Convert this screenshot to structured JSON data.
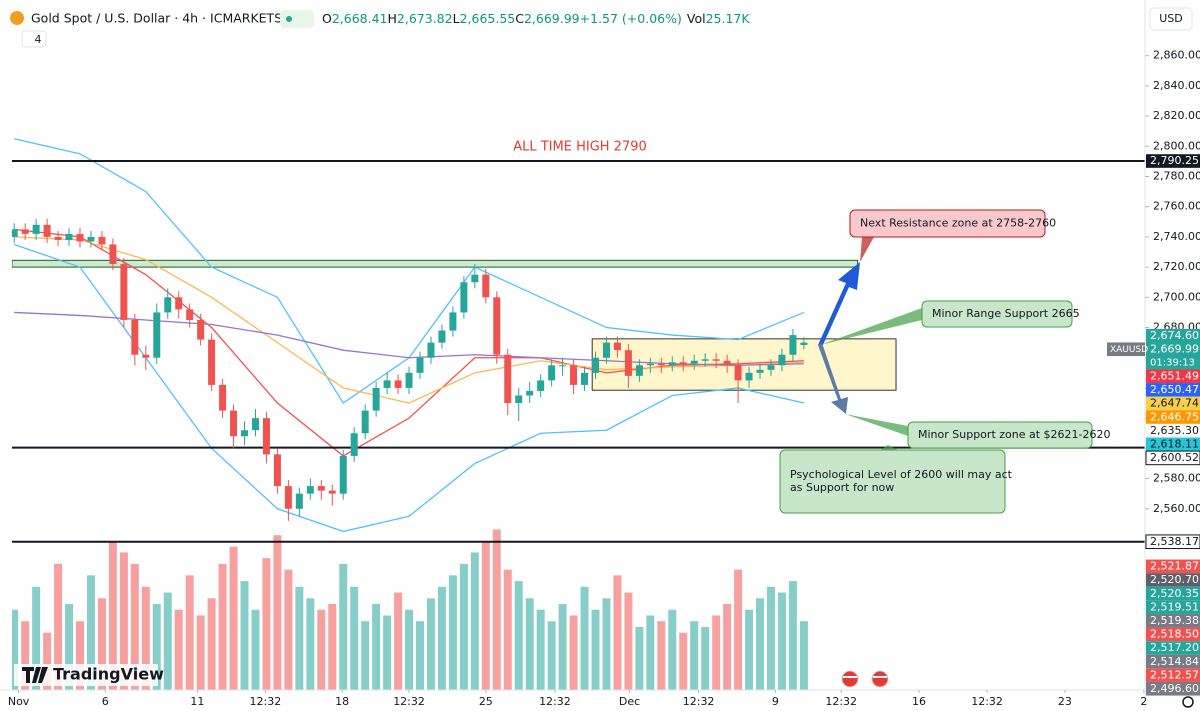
{
  "header": {
    "symbol": "Gold Spot / U.S. Dollar · 4h · ICMARKETS",
    "ohlc": [
      {
        "label": "O",
        "value": "2,668.41"
      },
      {
        "label": "H",
        "value": "2,673.82"
      },
      {
        "label": "L",
        "value": "2,665.55"
      },
      {
        "label": "C",
        "value": "2,669.99"
      }
    ],
    "change": "+1.57 (+0.06%)",
    "volume": {
      "label": "Vol",
      "value": "25.17K"
    },
    "indicator_count": "4",
    "currency": "USD",
    "logo": "TradingView"
  },
  "chart_data": {
    "type": "candlestick",
    "xlim": [
      -0.2,
      103.1
    ],
    "ylim": [
      2440,
      2877
    ],
    "vlim": [
      0,
      30
    ],
    "grid": false,
    "up_color": "#26a69a",
    "down_color": "#ef5350",
    "xticks": [
      {
        "value": 0.4,
        "label": "Nov"
      },
      {
        "value": 8.3,
        "label": "6"
      },
      {
        "value": 16.7,
        "label": "11"
      },
      {
        "value": 22.9,
        "label": "12:32"
      },
      {
        "value": 29.9,
        "label": "18"
      },
      {
        "value": 36,
        "label": "12:32"
      },
      {
        "value": 43,
        "label": "25"
      },
      {
        "value": 49.3,
        "label": "12:32"
      },
      {
        "value": 56.1,
        "label": "Dec"
      },
      {
        "value": 62.4,
        "label": "12:32"
      },
      {
        "value": 69.4,
        "label": "9"
      },
      {
        "value": 75.4,
        "label": "12:32"
      },
      {
        "value": 82.5,
        "label": "16"
      },
      {
        "value": 88.7,
        "label": "12:32"
      },
      {
        "value": 95.8,
        "label": "23"
      },
      {
        "value": 103,
        "label": "2"
      }
    ],
    "yticks": [
      {
        "value": 2560,
        "label": "2,560.00"
      },
      {
        "value": 2580,
        "label": "2,580.00"
      },
      {
        "value": 2600,
        "label": "2,600.00"
      },
      {
        "value": 2620,
        "label": "2,620.00"
      },
      {
        "value": 2640,
        "label": "2,640.00"
      },
      {
        "value": 2660,
        "label": "2,660.00"
      },
      {
        "value": 2680,
        "label": "2,680.00"
      },
      {
        "value": 2700,
        "label": "2,700.00"
      },
      {
        "value": 2720,
        "label": "2,720.00"
      },
      {
        "value": 2740,
        "label": "2,740.00"
      },
      {
        "value": 2760,
        "label": "2,760.00"
      },
      {
        "value": 2780,
        "label": "2,780.00"
      },
      {
        "value": 2800,
        "label": "2,800.00"
      },
      {
        "value": 2820,
        "label": "2,820.00"
      },
      {
        "value": 2840,
        "label": "2,840.00"
      },
      {
        "value": 2860,
        "label": "2,860.00"
      }
    ],
    "open": [
      2740,
      2745,
      2742,
      2748,
      2740,
      2738,
      2742,
      2737,
      2740,
      2735,
      2722,
      2685,
      2662,
      2660,
      2690,
      2700,
      2692,
      2685,
      2672,
      2642,
      2625,
      2608,
      2612,
      2620,
      2596,
      2575,
      2560,
      2570,
      2575,
      2572,
      2570,
      2595,
      2610,
      2625,
      2640,
      2645,
      2640,
      2650,
      2660,
      2670,
      2678,
      2690,
      2710,
      2715,
      2700,
      2662,
      2630,
      2635,
      2638,
      2645,
      2655,
      2655,
      2642,
      2650,
      2660,
      2670,
      2665,
      2648,
      2655,
      2656,
      2655,
      2657,
      2656,
      2658,
      2659,
      2658,
      2655,
      2645,
      2650,
      2652,
      2655,
      2662,
      2668.41
    ],
    "high": [
      2749,
      2749,
      2752,
      2752,
      2744,
      2746,
      2746,
      2744,
      2744,
      2739,
      2726,
      2689,
      2668,
      2696,
      2706,
      2704,
      2696,
      2689,
      2676,
      2646,
      2629,
      2618,
      2626,
      2624,
      2600,
      2579,
      2574,
      2580,
      2579,
      2576,
      2599,
      2614,
      2629,
      2644,
      2650,
      2649,
      2654,
      2664,
      2674,
      2682,
      2694,
      2714,
      2722,
      2719,
      2704,
      2666,
      2640,
      2644,
      2649,
      2659,
      2660,
      2659,
      2654,
      2664,
      2674,
      2674,
      2669,
      2659,
      2660,
      2660,
      2661,
      2661,
      2662,
      2663,
      2663,
      2662,
      2659,
      2654,
      2656,
      2659,
      2666,
      2679,
      2673.82
    ],
    "low": [
      2736,
      2738,
      2738,
      2736,
      2734,
      2734,
      2733,
      2733,
      2731,
      2718,
      2680,
      2655,
      2652,
      2656,
      2686,
      2686,
      2680,
      2668,
      2638,
      2620,
      2600,
      2602,
      2608,
      2590,
      2570,
      2552,
      2555,
      2566,
      2566,
      2562,
      2566,
      2591,
      2606,
      2621,
      2636,
      2636,
      2636,
      2646,
      2656,
      2666,
      2674,
      2686,
      2706,
      2696,
      2656,
      2622,
      2618,
      2630,
      2634,
      2641,
      2648,
      2636,
      2638,
      2646,
      2656,
      2660,
      2640,
      2644,
      2650,
      2650,
      2651,
      2651,
      2652,
      2654,
      2653,
      2650,
      2630,
      2640,
      2646,
      2648,
      2651,
      2658,
      2665.55
    ],
    "close": [
      2745,
      2742,
      2748,
      2740,
      2738,
      2742,
      2737,
      2740,
      2735,
      2722,
      2685,
      2662,
      2660,
      2690,
      2700,
      2692,
      2685,
      2672,
      2642,
      2625,
      2608,
      2612,
      2620,
      2596,
      2575,
      2560,
      2570,
      2575,
      2572,
      2570,
      2595,
      2610,
      2625,
      2640,
      2645,
      2640,
      2650,
      2660,
      2670,
      2678,
      2690,
      2710,
      2715,
      2700,
      2662,
      2630,
      2635,
      2638,
      2645,
      2655,
      2655,
      2642,
      2650,
      2660,
      2670,
      2665,
      2648,
      2655,
      2656,
      2655,
      2657,
      2656,
      2658,
      2659,
      2658,
      2655,
      2645,
      2650,
      2652,
      2655,
      2662,
      2675,
      2669.99
    ],
    "volume": [
      14,
      12,
      18,
      10,
      22,
      15,
      12,
      20,
      16,
      26,
      24,
      22,
      18,
      15,
      17,
      14,
      20,
      13,
      16,
      22,
      25,
      19,
      14,
      23,
      27,
      21,
      18,
      16,
      14,
      15,
      22,
      18,
      12,
      15,
      13,
      17,
      14,
      12,
      16,
      18,
      20,
      22,
      24,
      26,
      28,
      21,
      19,
      16,
      14,
      12,
      15,
      13,
      18,
      14,
      16,
      20,
      17,
      11,
      13,
      12,
      14,
      10,
      12,
      11,
      13,
      15,
      21,
      14,
      16,
      18,
      17,
      19,
      12
    ],
    "indicators": [
      {
        "color": "#4fc3f7",
        "x": [
          0,
          6,
          12,
          18,
          24,
          30,
          36,
          42,
          48,
          54,
          60,
          66,
          72
        ],
        "values": [
          2805,
          2795,
          2770,
          2720,
          2700,
          2630,
          2660,
          2720,
          2700,
          2680,
          2675,
          2672,
          2690
        ]
      },
      {
        "color": "#4fc3f7",
        "x": [
          0,
          6,
          12,
          18,
          24,
          30,
          36,
          42,
          48,
          54,
          60,
          66,
          72
        ],
        "values": [
          2735,
          2720,
          2660,
          2600,
          2560,
          2545,
          2555,
          2590,
          2610,
          2612,
          2635,
          2640,
          2630
        ]
      },
      {
        "color": "#ef5350",
        "x": [
          0,
          6,
          12,
          18,
          24,
          30,
          36,
          42,
          48,
          54,
          60,
          66,
          72
        ],
        "values": [
          2745,
          2740,
          2715,
          2680,
          2630,
          2595,
          2620,
          2660,
          2660,
          2650,
          2655,
          2656,
          2658
        ]
      },
      {
        "color": "#ffb74d",
        "x": [
          0,
          6,
          12,
          18,
          24,
          30,
          36,
          42,
          48,
          54,
          60,
          66,
          72
        ],
        "values": [
          2740,
          2738,
          2725,
          2700,
          2670,
          2640,
          2630,
          2650,
          2658,
          2652,
          2654,
          2655,
          2657
        ]
      },
      {
        "color": "#9575cd",
        "x": [
          0,
          6,
          12,
          18,
          24,
          30,
          36,
          42,
          48,
          54,
          60,
          66,
          72
        ],
        "values": [
          2690,
          2688,
          2685,
          2682,
          2675,
          2665,
          2660,
          2662,
          2660,
          2658,
          2656,
          2655,
          2656
        ]
      }
    ],
    "levels": [
      {
        "value": 2790.25,
        "label": "2,790.25",
        "color": "#131722",
        "text_color": "#ffffff"
      },
      {
        "value": 2600.52,
        "label": "2,600.52",
        "color": "#ffffff",
        "text_color": "#131722"
      },
      {
        "value": 2538.17,
        "label": "2,538.17",
        "color": "#ffffff",
        "text_color": "#131722"
      }
    ],
    "zones": [
      {
        "x": [
          -0.2,
          76.9
        ],
        "y": [
          2720,
          2724.5
        ],
        "fill": "#c8e6c9",
        "stroke": "#1b5e20"
      },
      {
        "x": [
          52.7,
          80.4
        ],
        "y": [
          2638.5,
          2672.5
        ],
        "fill": "#fff5c2",
        "stroke": "#333333"
      }
    ],
    "price_labels": [
      {
        "value": 2674.6,
        "label": "2,674.60",
        "color": "#26a69a",
        "text_color": "#ffffff"
      },
      {
        "value": 2669.99,
        "label": "2,669.99",
        "color": "#26a69a",
        "text_color": "#ffffff",
        "symbol": "XAUUSD",
        "time": "01:39:13"
      },
      {
        "value": 2651.49,
        "label": "2,651.49",
        "color": "#f23645",
        "text_color": "#ffffff"
      },
      {
        "value": 2650.47,
        "label": "2,650.47",
        "color": "#2962ff",
        "text_color": "#ffffff"
      },
      {
        "value": 2647.74,
        "label": "2,647.74",
        "color": "#f7d046",
        "text_color": "#131722"
      },
      {
        "value": 2646.75,
        "label": "2,646.75",
        "color": "#ff9800",
        "text_color": "#ffffff"
      },
      {
        "value": 2635.3,
        "label": "2,635.30",
        "color": "#ffffff",
        "text_color": "#131722"
      },
      {
        "value": 2618.11,
        "label": "2,618.11",
        "color": "#26c6da",
        "text_color": "#131722"
      },
      {
        "value": 2521.87,
        "label": "2,521.87",
        "color": "#ef5350",
        "text_color": "#ffffff"
      },
      {
        "value": 2520.7,
        "label": "2,520.70",
        "color": "#5d606b",
        "text_color": "#ffffff"
      },
      {
        "value": 2520.35,
        "label": "2,520.35",
        "color": "#26a69a",
        "text_color": "#ffffff"
      },
      {
        "value": 2519.51,
        "label": "2,519.51",
        "color": "#26a69a",
        "text_color": "#ffffff"
      },
      {
        "value": 2519.38,
        "label": "2,519.38",
        "color": "#787b86",
        "text_color": "#ffffff"
      },
      {
        "value": 2518.5,
        "label": "2,518.50",
        "color": "#ef5350",
        "text_color": "#ffffff"
      },
      {
        "value": 2517.2,
        "label": "2,517.20",
        "color": "#26a69a",
        "text_color": "#ffffff"
      },
      {
        "value": 2514.84,
        "label": "2,514.84",
        "color": "#787b86",
        "text_color": "#ffffff"
      },
      {
        "value": 2512.57,
        "label": "2,512.57",
        "color": "#ef5350",
        "text_color": "#ffffff"
      },
      {
        "value": 2496.6,
        "label": "2,496.60",
        "color": "#787b86",
        "text_color": "#ffffff"
      }
    ],
    "ath_text": "ALL TIME HIGH 2790",
    "callouts": [
      {
        "lines": [
          "Next Resistance zone at 2758-2760"
        ],
        "fill": "#f8c8cc",
        "stroke": "#b71c1c"
      },
      {
        "lines": [
          "Minor Range Support 2665"
        ],
        "fill": "#c8e6c9",
        "stroke": "#43a047"
      },
      {
        "lines": [
          "Minor Support zone at $2621-2620"
        ],
        "fill": "#c8e6c9",
        "stroke": "#43a047"
      },
      {
        "lines": [
          "Psychological Level of 2600 will may act",
          "as Support for now"
        ],
        "fill": "#c8e6c9",
        "stroke": "#43a047"
      }
    ]
  }
}
